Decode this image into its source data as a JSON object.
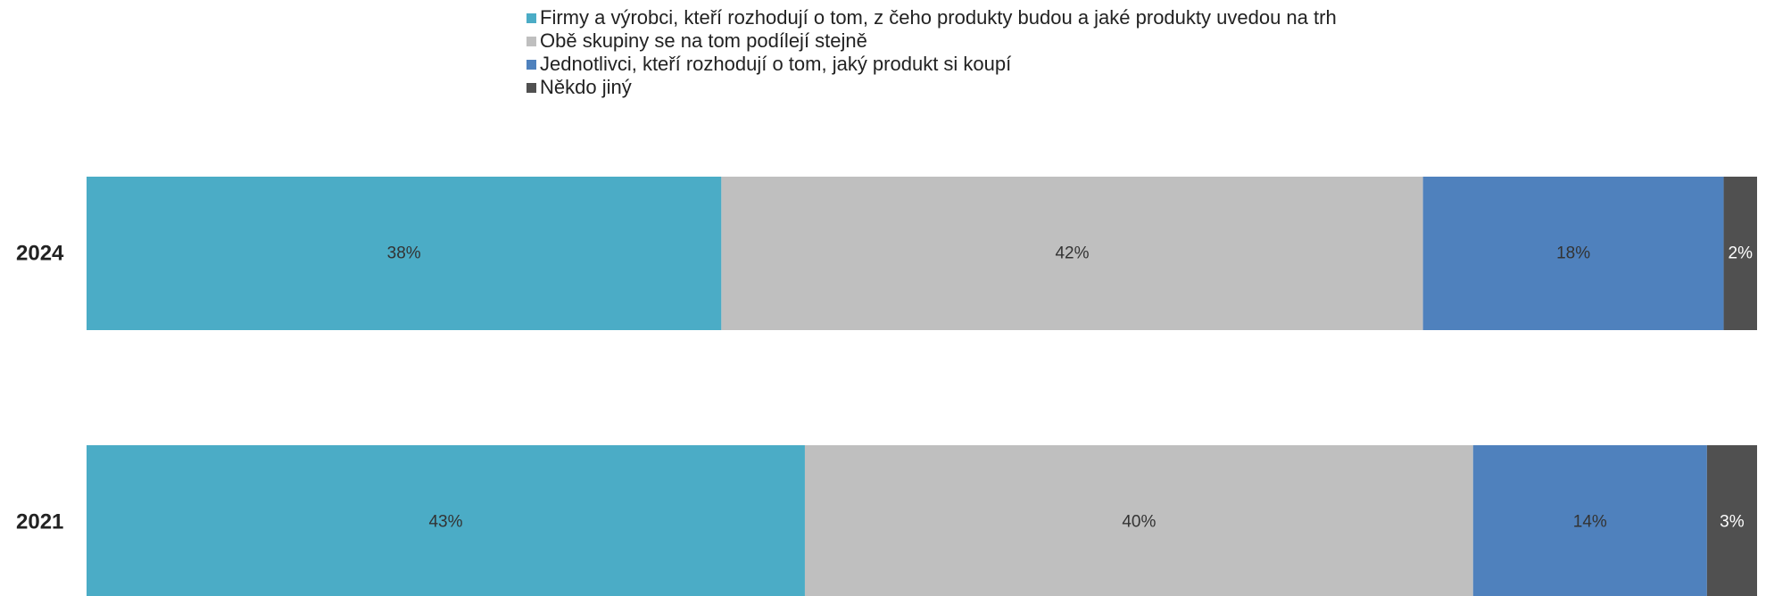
{
  "chart_data": {
    "type": "bar",
    "orientation": "horizontal",
    "stacked": "percent",
    "categories": [
      "2024",
      "2021"
    ],
    "series": [
      {
        "name": "Firmy a výrobci, kteří rozhodují o tom, z čeho produkty budou a jaké produkty uvedou na trh",
        "color": "#4BACC6",
        "values": [
          38,
          43
        ],
        "labels": [
          "38%",
          "43%"
        ]
      },
      {
        "name": "Obě skupiny se na tom podílejí stejně",
        "color": "#BFBFBF",
        "values": [
          42,
          40
        ],
        "labels": [
          "42%",
          "40%"
        ]
      },
      {
        "name": "Jednotlivci, kteří rozhodují o tom, jaký produkt si koupí",
        "color": "#4F81BD",
        "values": [
          18,
          14
        ],
        "labels": [
          "18%",
          "14%"
        ]
      },
      {
        "name": "Někdo jiný",
        "color": "#505050",
        "values": [
          2,
          3
        ],
        "labels": [
          "2%",
          "3%"
        ]
      }
    ],
    "xlim": [
      0,
      100
    ],
    "grid": false,
    "legend_position": "top"
  }
}
